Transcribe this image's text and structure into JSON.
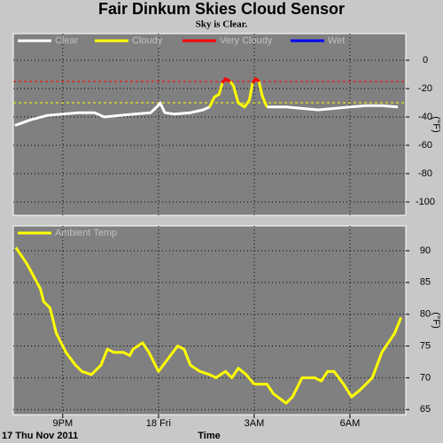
{
  "chart_data": [
    {
      "type": "line",
      "title": "Fair Dinkum Skies Cloud Sensor",
      "subtitle": "Sky is Clear.",
      "ylabel": "(°F)",
      "x": [
        19.5,
        20.0,
        20.5,
        21.0,
        21.5,
        22.0,
        22.3,
        22.75,
        23.25,
        23.75,
        23.95,
        24.05,
        24.2,
        24.5,
        25.0,
        25.4,
        25.6,
        25.75,
        25.9,
        26.0,
        26.1,
        26.25,
        26.35,
        26.5,
        26.7,
        26.85,
        26.95,
        27.05,
        27.15,
        27.25,
        27.4,
        28.0,
        28.5,
        29.0,
        29.5,
        30.0,
        30.5,
        31.0,
        31.5
      ],
      "series": [
        {
          "name": "Clear",
          "color": "#ffffff",
          "values": [
            -46,
            -42,
            -39,
            -38,
            -37,
            -37,
            -40,
            -39,
            -38,
            -37,
            -33,
            -30,
            -37,
            -38,
            -37,
            -35,
            -33,
            null,
            null,
            null,
            null,
            null,
            null,
            -30,
            -33,
            null,
            null,
            null,
            null,
            null,
            -33,
            -33,
            -34,
            -35,
            -34,
            -33,
            -32,
            -32,
            -33
          ]
        },
        {
          "name": "Cloudy",
          "color": "#ffff00",
          "values": [
            null,
            null,
            null,
            null,
            null,
            null,
            null,
            null,
            null,
            null,
            null,
            null,
            null,
            null,
            null,
            null,
            -33,
            -26,
            -24,
            -16,
            null,
            -15,
            -18,
            -30,
            -33,
            -28,
            -16,
            null,
            -15,
            -25,
            -33,
            null,
            null,
            null,
            null,
            null,
            null,
            null,
            null
          ]
        },
        {
          "name": "Very Cloudy",
          "color": "#ff0000",
          "values": [
            null,
            null,
            null,
            null,
            null,
            null,
            null,
            null,
            null,
            null,
            null,
            null,
            null,
            null,
            null,
            null,
            null,
            null,
            null,
            -16,
            -13,
            -15,
            null,
            null,
            null,
            null,
            -16,
            -13,
            -15,
            null,
            null,
            null,
            null,
            null,
            null,
            null,
            null,
            null,
            null
          ]
        },
        {
          "name": "Wet",
          "color": "#0000ff",
          "values": [
            null,
            null,
            null,
            null,
            null,
            null,
            null,
            null,
            null,
            null,
            null,
            null,
            null,
            null,
            null,
            null,
            null,
            null,
            null,
            null,
            null,
            null,
            null,
            null,
            null,
            null,
            null,
            null,
            null,
            null,
            null,
            null,
            null,
            null,
            null,
            null,
            null,
            null,
            null
          ]
        }
      ],
      "thresholds": [
        {
          "value": -15,
          "color": "#ff0000"
        },
        {
          "value": -30,
          "color": "#ffff00"
        }
      ],
      "xlim": [
        19.45,
        31.75
      ],
      "ylim": [
        -109.4,
        18.75
      ],
      "yticks": [
        0,
        -20,
        -40,
        -60,
        -80,
        -100
      ],
      "grid": true
    },
    {
      "type": "line",
      "xlabel": "Time",
      "date_label": "17 Thu Nov 2011",
      "ylabel": "(°F)",
      "x": [
        19.53,
        19.87,
        20.3,
        20.4,
        20.6,
        20.8,
        21.1,
        21.4,
        21.6,
        21.9,
        22.2,
        22.4,
        22.6,
        22.9,
        23.1,
        23.2,
        23.5,
        23.7,
        23.9,
        24.0,
        24.3,
        24.6,
        24.8,
        25.0,
        25.3,
        25.6,
        25.8,
        26.1,
        26.3,
        26.5,
        26.75,
        27.0,
        27.4,
        27.6,
        28.0,
        28.2,
        28.5,
        28.9,
        29.1,
        29.3,
        29.5,
        29.8,
        30.05,
        30.3,
        30.7,
        31.0,
        31.4,
        31.6
      ],
      "series": [
        {
          "name": "Ambient Temp",
          "color": "#ffff00",
          "values": [
            90.5,
            88,
            84,
            82,
            81,
            77,
            74,
            72,
            71,
            70.5,
            72,
            74.5,
            74,
            74,
            73.5,
            74.5,
            75.5,
            74,
            72,
            71,
            73,
            75,
            74.5,
            72,
            71,
            70.5,
            70,
            71,
            70,
            71.5,
            70.5,
            69,
            69,
            67.5,
            66,
            67,
            70,
            70,
            69.5,
            71,
            71,
            69,
            67,
            68,
            70,
            74,
            77,
            79.5
          ]
        }
      ],
      "xlim": [
        19.45,
        31.75
      ],
      "ylim": [
        64.2,
        93.9
      ],
      "xticks": [
        {
          "value": 21,
          "label": "9PM"
        },
        {
          "value": 24,
          "label": "18 Fri"
        },
        {
          "value": 27,
          "label": "3AM"
        },
        {
          "value": 30,
          "label": "6AM"
        }
      ],
      "yticks": [
        90,
        85,
        80,
        75,
        70,
        65
      ],
      "grid": true
    }
  ]
}
